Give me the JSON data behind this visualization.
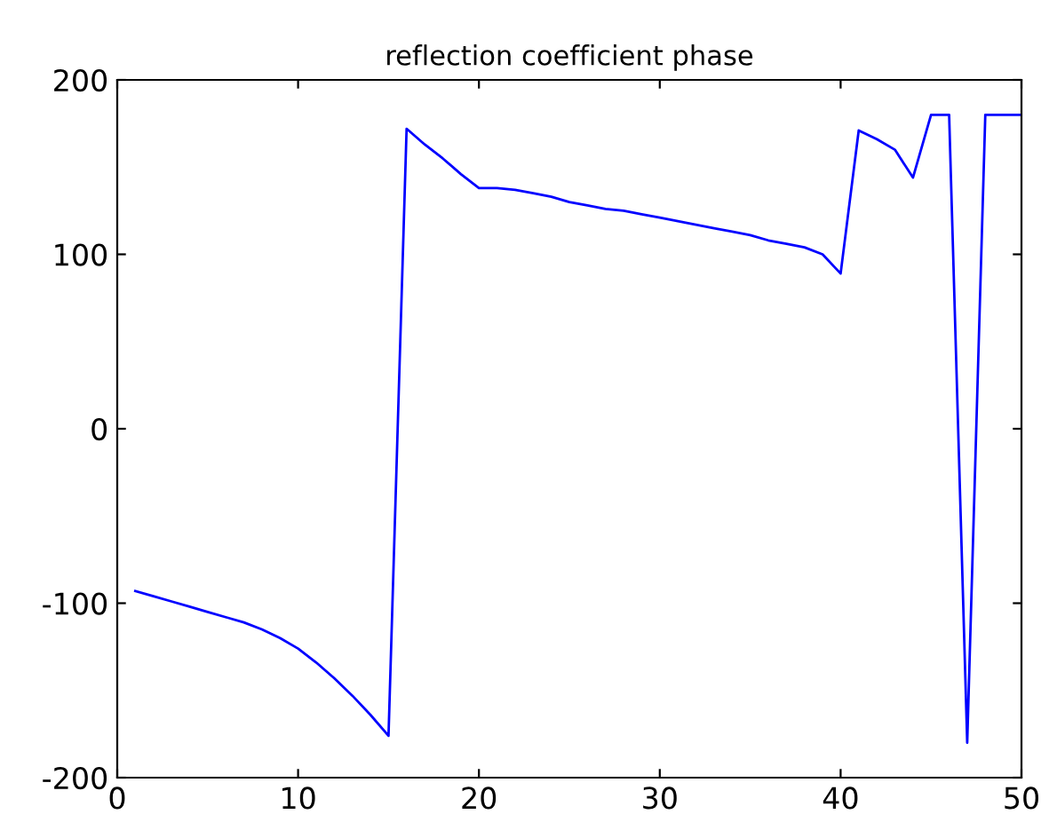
{
  "chart_data": {
    "type": "line",
    "title": "reflection coefficient phase",
    "x": [
      1,
      2,
      3,
      4,
      5,
      6,
      7,
      8,
      9,
      10,
      11,
      12,
      13,
      14,
      15,
      16,
      17,
      18,
      19,
      20,
      21,
      22,
      23,
      24,
      25,
      26,
      27,
      28,
      29,
      30,
      31,
      32,
      33,
      34,
      35,
      36,
      37,
      38,
      39,
      40,
      41,
      42,
      43,
      44,
      45,
      46,
      47,
      48,
      49,
      50
    ],
    "series": [
      {
        "color": "#0000ff",
        "values": [
          -93,
          -96,
          -99,
          -102,
          -105,
          -108,
          -111,
          -115,
          -120,
          -126,
          -134,
          -143,
          -153,
          -164,
          -176,
          172,
          163,
          155,
          146,
          138,
          138,
          137,
          135,
          133,
          130,
          128,
          126,
          125,
          123,
          121,
          119,
          117,
          115,
          113,
          111,
          108,
          106,
          104,
          100,
          89,
          171,
          166,
          160,
          144,
          180,
          180,
          -180,
          180,
          180,
          180
        ]
      }
    ],
    "xlim": [
      0,
      50
    ],
    "ylim": [
      -200,
      200
    ],
    "xticks": [
      0,
      10,
      20,
      30,
      40,
      50
    ],
    "yticks": [
      -200,
      -100,
      0,
      100,
      200
    ],
    "grid": false,
    "legend": false,
    "marker": "none",
    "line_style": "solid"
  }
}
